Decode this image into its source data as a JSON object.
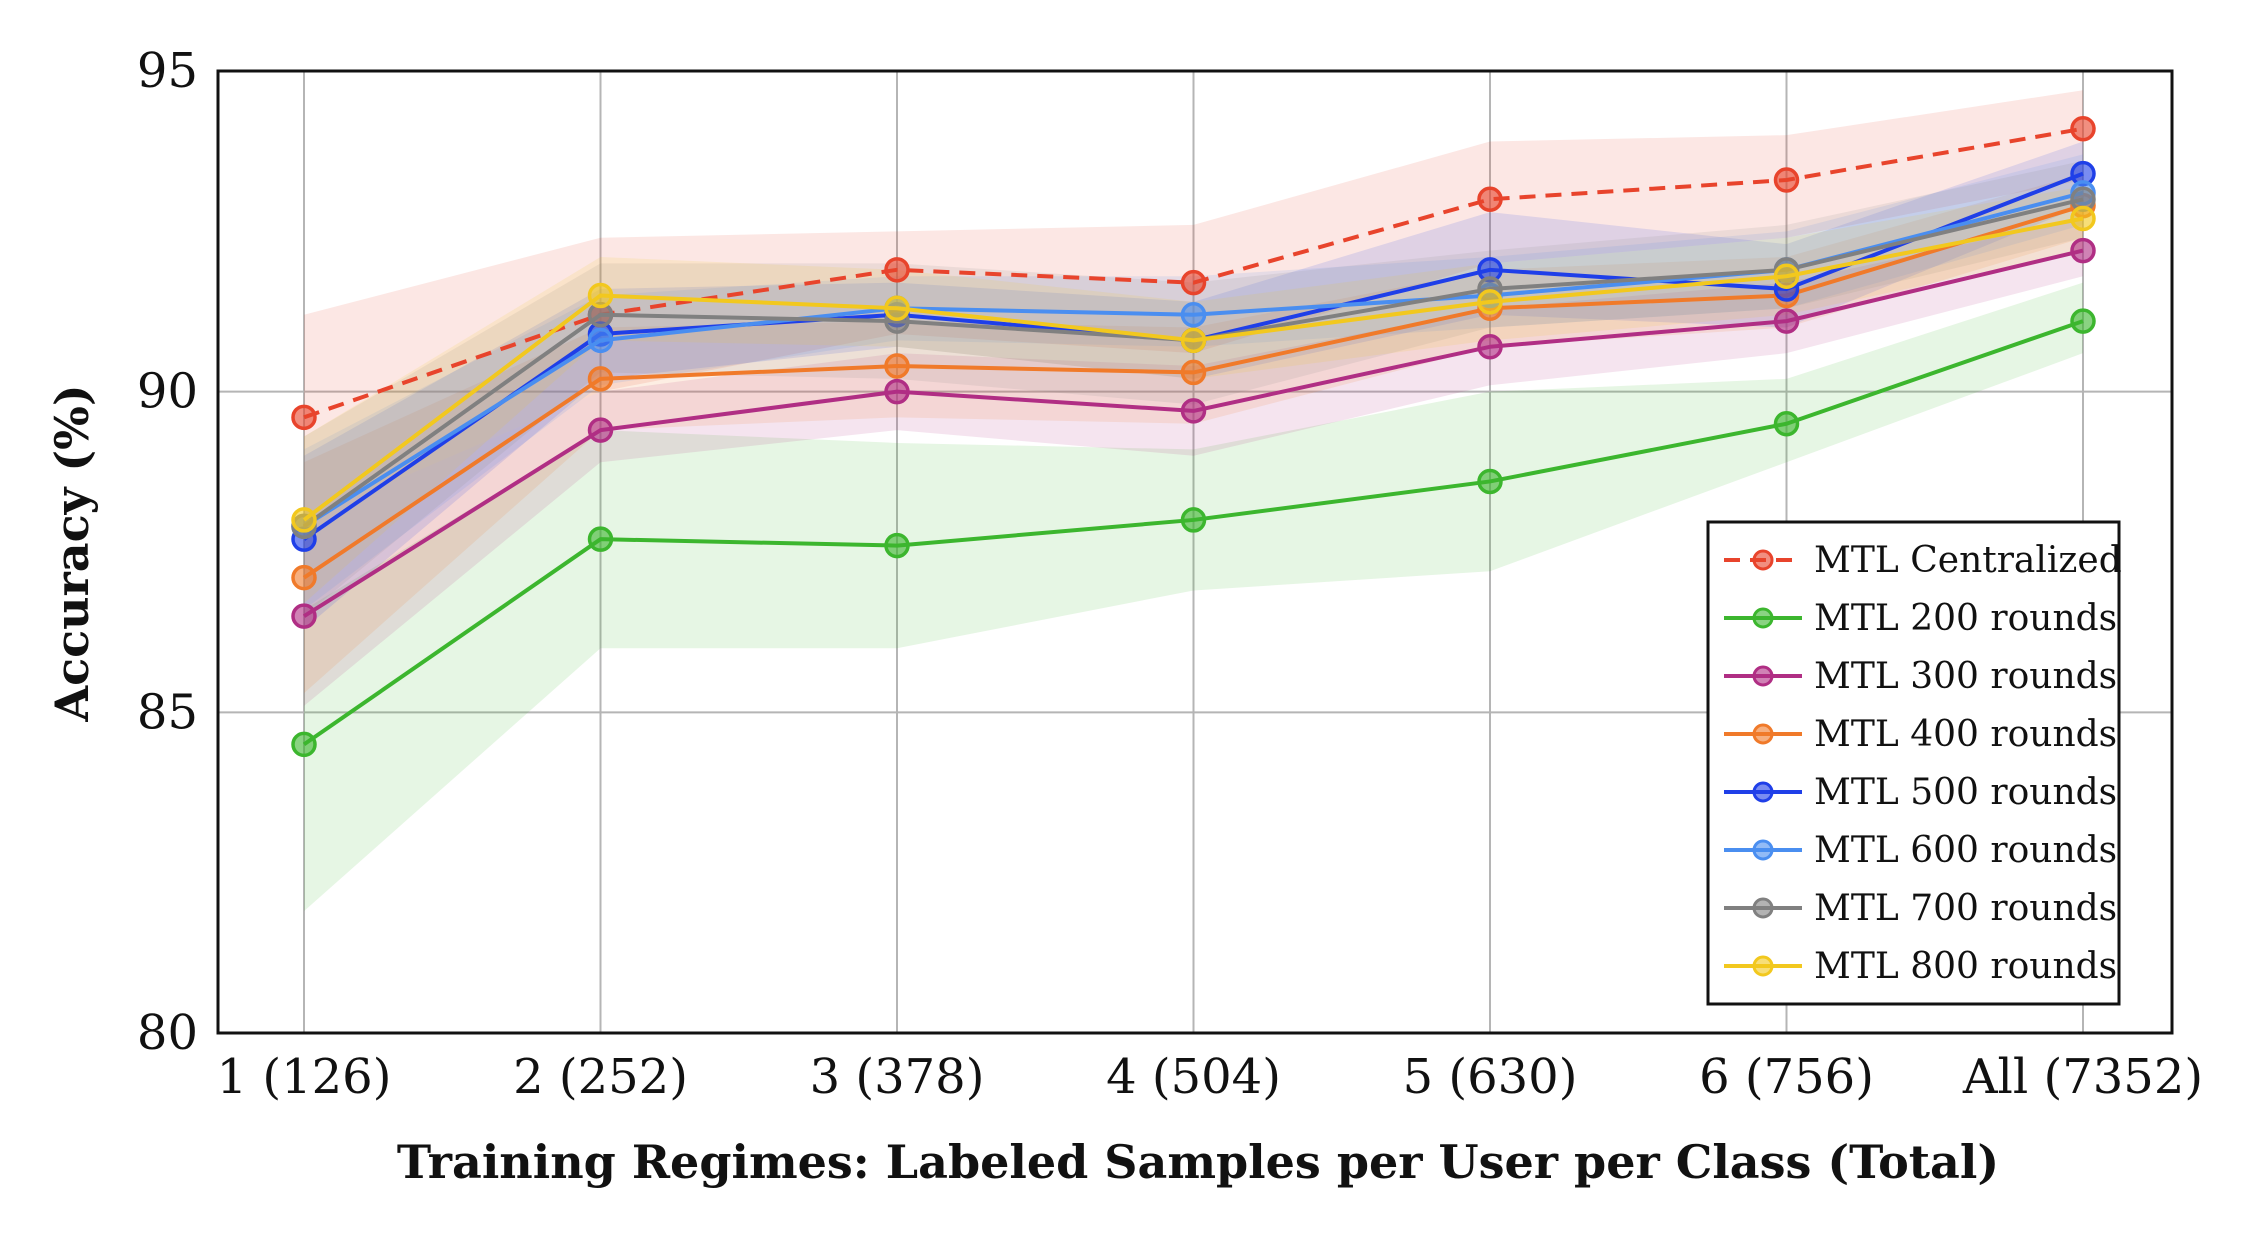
{
  "chart_data": {
    "type": "line",
    "title": "",
    "xlabel": "Training Regimes: Labeled Samples per User per Class (Total)",
    "ylabel": "Accuracy (%)",
    "categories": [
      "1 (126)",
      "2 (252)",
      "3 (378)",
      "4 (504)",
      "5 (630)",
      "6 (756)",
      "All (7352)"
    ],
    "ylim": [
      80,
      95
    ],
    "yticks": [
      "80",
      "85",
      "90",
      "95"
    ],
    "grid": true,
    "legend_position": "bottom-right",
    "series": [
      {
        "name": "MTL Centralized",
        "color": "#e8442c",
        "dashed": true,
        "values": [
          89.6,
          91.2,
          91.9,
          91.7,
          93.0,
          93.3,
          94.1
        ],
        "band_low": [
          88.0,
          90.0,
          90.9,
          90.6,
          92.0,
          92.4,
          93.3
        ],
        "band_high": [
          91.2,
          92.4,
          92.5,
          92.6,
          93.9,
          94.0,
          94.7
        ]
      },
      {
        "name": "MTL 200 rounds",
        "color": "#3cb62e",
        "dashed": false,
        "values": [
          84.5,
          87.7,
          87.6,
          88.0,
          88.6,
          89.5,
          91.1
        ],
        "band_low": [
          81.9,
          86.0,
          86.0,
          86.9,
          87.2,
          88.9,
          90.6
        ],
        "band_high": [
          86.6,
          89.4,
          89.2,
          89.1,
          90.0,
          90.2,
          91.7
        ]
      },
      {
        "name": "MTL 300 rounds",
        "color": "#b02e84",
        "dashed": false,
        "values": [
          86.5,
          89.4,
          90.0,
          89.7,
          90.7,
          91.1,
          92.2
        ],
        "band_low": [
          85.1,
          88.9,
          89.4,
          89.0,
          90.1,
          90.6,
          91.8
        ],
        "band_high": [
          88.0,
          90.0,
          90.6,
          90.4,
          91.3,
          91.7,
          92.7
        ]
      },
      {
        "name": "MTL 400 rounds",
        "color": "#f07a2a",
        "dashed": false,
        "values": [
          87.1,
          90.2,
          90.4,
          90.3,
          91.3,
          91.5,
          92.9
        ],
        "band_low": [
          85.3,
          89.4,
          89.6,
          89.5,
          90.7,
          91.0,
          92.4
        ],
        "band_high": [
          88.9,
          91.0,
          91.1,
          91.0,
          91.9,
          92.1,
          93.4
        ]
      },
      {
        "name": "MTL 500 rounds",
        "color": "#1f3fe8",
        "dashed": false,
        "values": [
          87.7,
          90.9,
          91.2,
          90.8,
          91.9,
          91.6,
          93.4
        ],
        "band_low": [
          86.3,
          90.2,
          90.7,
          90.2,
          91.2,
          91.0,
          92.9
        ],
        "band_high": [
          89.0,
          91.6,
          91.7,
          91.4,
          92.8,
          92.3,
          93.9
        ]
      },
      {
        "name": "MTL 600 rounds",
        "color": "#4a8ef0",
        "dashed": false,
        "values": [
          87.9,
          90.8,
          91.3,
          91.2,
          91.5,
          91.9,
          93.1
        ],
        "band_low": [
          86.6,
          90.1,
          90.8,
          90.7,
          91.0,
          91.3,
          92.6
        ],
        "band_high": [
          89.1,
          91.5,
          91.8,
          91.8,
          92.1,
          92.5,
          93.7
        ]
      },
      {
        "name": "MTL 700 rounds",
        "color": "#808080",
        "dashed": false,
        "values": [
          87.9,
          91.2,
          91.1,
          90.8,
          91.6,
          91.9,
          93.0
        ],
        "band_low": [
          86.5,
          90.3,
          90.2,
          89.8,
          91.0,
          91.3,
          92.4
        ],
        "band_high": [
          89.3,
          92.0,
          92.0,
          91.7,
          92.2,
          92.6,
          93.6
        ]
      },
      {
        "name": "MTL 800 rounds",
        "color": "#f2c81e",
        "dashed": false,
        "values": [
          88.0,
          91.5,
          91.3,
          90.8,
          91.4,
          91.8,
          92.7
        ],
        "band_low": [
          86.7,
          90.8,
          90.7,
          90.2,
          90.8,
          91.2,
          92.2
        ],
        "band_high": [
          89.3,
          92.1,
          91.9,
          91.4,
          92.0,
          92.4,
          93.2
        ]
      }
    ]
  }
}
